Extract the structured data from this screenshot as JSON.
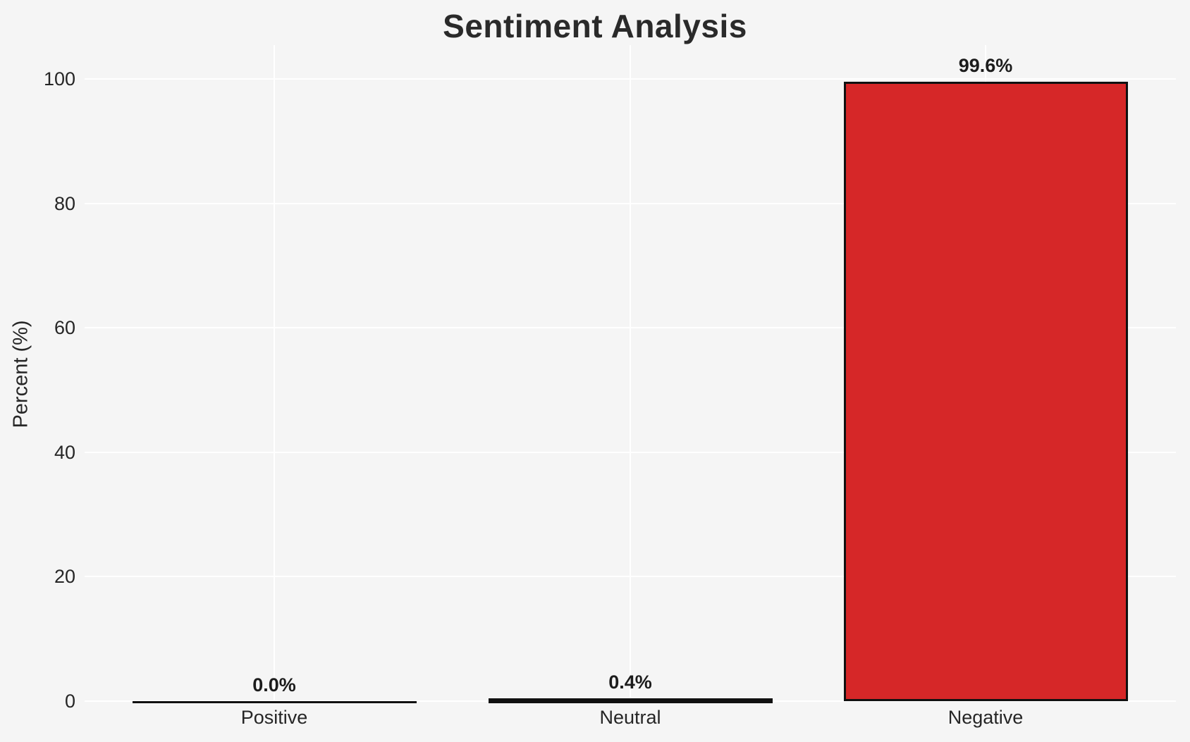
{
  "chart_data": {
    "type": "bar",
    "title": "Sentiment Analysis",
    "xlabel": "",
    "ylabel": "Percent (%)",
    "categories": [
      "Positive",
      "Neutral",
      "Negative"
    ],
    "values": [
      0.0,
      0.4,
      99.6
    ],
    "value_labels": [
      "0.0%",
      "0.4%",
      "99.6%"
    ],
    "bar_colors": [
      "#1a1a1a",
      "#111111",
      "#d62728"
    ],
    "bar_edge_color": "#111111",
    "ylim": [
      0,
      105
    ],
    "yticks": [
      0,
      20,
      40,
      60,
      80,
      100
    ],
    "grid": true,
    "grid_color": "#ffffff",
    "background_color": "#f5f5f5",
    "text_color": "#262626",
    "legend": "none"
  }
}
